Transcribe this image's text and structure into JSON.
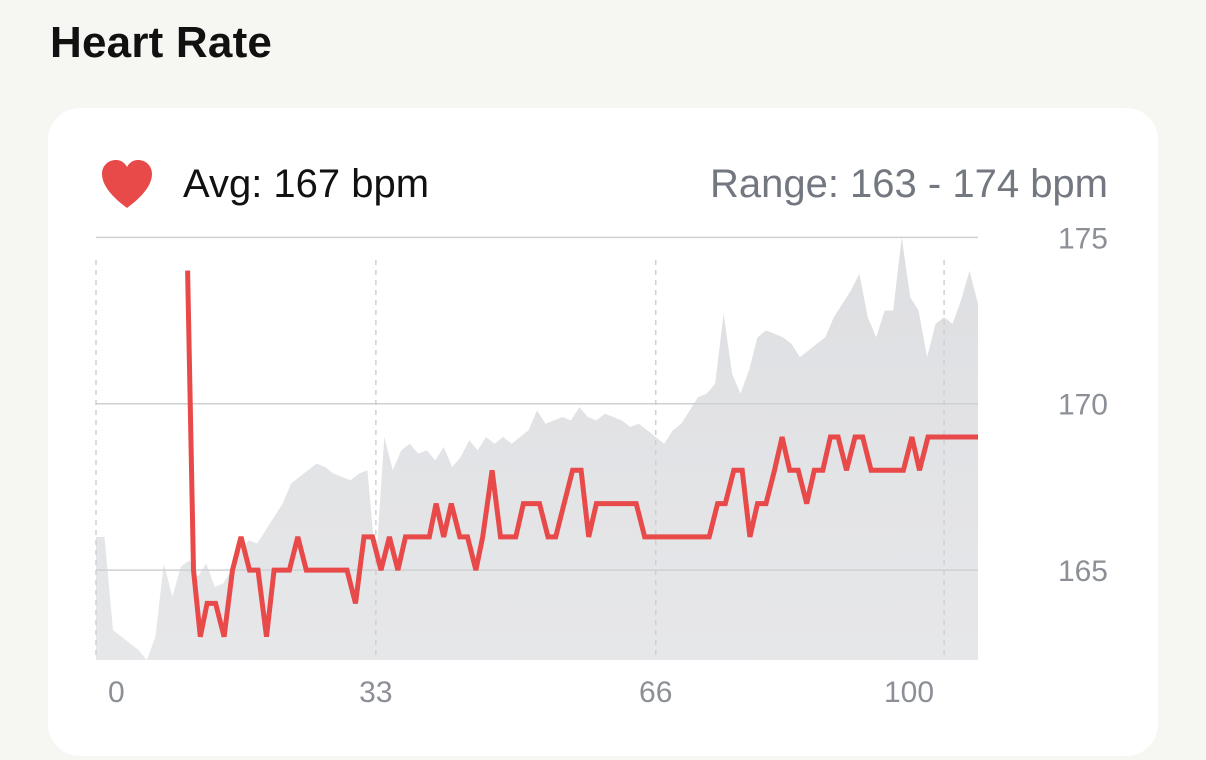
{
  "header": {
    "title": "Heart Rate"
  },
  "summary": {
    "icon": "heart-icon",
    "avg_text": "Avg: 167 bpm",
    "range_text": "Range: 163 - 174 bpm"
  },
  "colors": {
    "accent": "#e84a4a",
    "band": "#dcdde0",
    "grid": "#cfd0d4",
    "tick": "#8c9096",
    "background": "#f6f6f2",
    "card": "#ffffff"
  },
  "chart_data": {
    "type": "line",
    "title": "",
    "xlabel": "",
    "ylabel": "",
    "xlim": [
      0,
      104
    ],
    "ylim": [
      162.3,
      175.4
    ],
    "x_ticks": [
      0,
      33,
      66,
      100
    ],
    "x_tick_labels": [
      "0",
      "33",
      "66",
      "100"
    ],
    "y_ticks": [
      165,
      170,
      175
    ],
    "y_tick_labels": [
      "165",
      "170",
      "175"
    ],
    "grid": true,
    "y_axis_position": "right",
    "series": [
      {
        "kind": "line",
        "x": [
          10.8,
          11.5,
          12.3,
          13.1,
          14.1,
          15.1,
          16.1,
          17.1,
          18.1,
          19.1,
          20.1,
          21.0,
          22.0,
          22.8,
          23.8,
          24.8,
          25.8,
          26.8,
          27.8,
          28.6,
          29.6,
          30.6,
          31.6,
          32.6,
          33.6,
          34.6,
          35.6,
          36.5,
          37.4,
          38.3,
          39.3,
          40.1,
          41.0,
          41.9,
          42.9,
          43.8,
          44.8,
          45.6,
          46.7,
          47.7,
          48.6,
          49.5,
          50.4,
          51.4,
          52.3,
          53.3,
          54.2,
          55.2,
          56.2,
          57.2,
          58.1,
          59.0,
          60.0,
          61.0,
          61.9,
          62.8,
          63.7,
          64.7,
          65.6,
          66.6,
          67.5,
          68.5,
          69.5,
          70.4,
          71.4,
          72.3,
          73.3,
          74.2,
          75.2,
          76.2,
          77.1,
          78.0,
          79.0,
          80.0,
          80.9,
          81.8,
          82.8,
          83.8,
          84.7,
          85.7,
          86.6,
          87.5,
          88.5,
          89.5,
          90.4,
          91.4,
          92.3,
          93.3,
          94.3,
          95.2,
          96.2,
          97.1,
          98.1,
          99.0,
          100.0,
          101.0,
          102.0,
          103.0,
          104.0
        ],
        "y": [
          174,
          165,
          163,
          164,
          164,
          163,
          165,
          166,
          165,
          165,
          163,
          165,
          165,
          165,
          166,
          165,
          165,
          165,
          165,
          165,
          165,
          164,
          166,
          166,
          165,
          166,
          165,
          166,
          166,
          166,
          166,
          167,
          166,
          167,
          166,
          166,
          165,
          166,
          168,
          166,
          166,
          166,
          167,
          167,
          167,
          166,
          166,
          167,
          168,
          168,
          166,
          167,
          167,
          167,
          167,
          167,
          167,
          166,
          166,
          166,
          166,
          166,
          166,
          166,
          166,
          166,
          167,
          167,
          168,
          168,
          166,
          167,
          167,
          168,
          169,
          168,
          168,
          167,
          168,
          168,
          169,
          169,
          168,
          169,
          169,
          168,
          168,
          168,
          168,
          168,
          169,
          168,
          169,
          169,
          169,
          169,
          169,
          169,
          169
        ]
      },
      {
        "kind": "area",
        "x": [
          0,
          1,
          2,
          3,
          4,
          5,
          6,
          7,
          8,
          9,
          10,
          11,
          12,
          13,
          14,
          15,
          16,
          17,
          18,
          19,
          20,
          21,
          22,
          23,
          24,
          25,
          26,
          27,
          28,
          29,
          30,
          31,
          32,
          33,
          34,
          35,
          36,
          37,
          38,
          39,
          40,
          41,
          42,
          43,
          44,
          45,
          46,
          47,
          48,
          49,
          50,
          51,
          52,
          53,
          54,
          55,
          56,
          57,
          58,
          59,
          60,
          61,
          62,
          63,
          64,
          65,
          66,
          67,
          68,
          69,
          70,
          71,
          72,
          73,
          74,
          75,
          76,
          77,
          78,
          79,
          80,
          81,
          82,
          83,
          84,
          85,
          86,
          87,
          88,
          89,
          90,
          91,
          92,
          93,
          94,
          95,
          96,
          97,
          98,
          99,
          100,
          101,
          102,
          103,
          104
        ],
        "y": [
          166,
          166,
          163.2,
          163,
          162.8,
          162.6,
          162.3,
          163,
          165.2,
          164.2,
          165.1,
          165.3,
          164.8,
          165.2,
          164.5,
          164.6,
          165,
          165.6,
          165.9,
          165.8,
          166.2,
          166.6,
          167,
          167.6,
          167.8,
          168,
          168.2,
          168.1,
          167.9,
          167.8,
          167.7,
          167.9,
          168,
          165.2,
          169,
          168,
          168.6,
          168.8,
          168.5,
          168.6,
          168.3,
          168.7,
          168.1,
          168.4,
          168.9,
          168.6,
          169,
          168.8,
          169,
          168.8,
          169,
          169.2,
          169.8,
          169.4,
          169.5,
          169.6,
          169.5,
          169.9,
          169.6,
          169.5,
          169.7,
          169.6,
          169.5,
          169.3,
          169.4,
          169.2,
          169,
          168.8,
          169.2,
          169.4,
          169.8,
          170.2,
          170.3,
          170.6,
          172.7,
          170.9,
          170.3,
          171,
          172,
          172.2,
          172.1,
          172,
          171.8,
          171.4,
          171.6,
          171.8,
          172,
          172.6,
          173,
          173.4,
          173.9,
          172.6,
          172,
          172.8,
          172.8,
          175,
          173.2,
          172.8,
          171.4,
          172.4,
          172.6,
          172.4,
          173.1,
          174,
          173
        ]
      }
    ]
  }
}
